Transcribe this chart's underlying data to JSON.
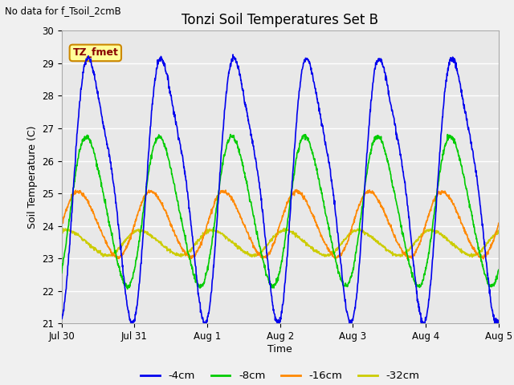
{
  "title": "Tonzi Soil Temperatures Set B",
  "subtitle": "No data for f_Tsoil_2cmB",
  "ylabel": "Soil Temperature (C)",
  "xlabel": "Time",
  "ylim": [
    21.0,
    30.0
  ],
  "yticks": [
    21.0,
    22.0,
    23.0,
    24.0,
    25.0,
    26.0,
    27.0,
    28.0,
    29.0,
    30.0
  ],
  "xtick_labels": [
    "Jul 30",
    "Jul 31",
    "Aug 1",
    "Aug 2",
    "Aug 3",
    "Aug 4",
    "Aug 5"
  ],
  "colors": {
    "4cm": "#0000ee",
    "8cm": "#00cc00",
    "16cm": "#ff8800",
    "32cm": "#cccc00"
  },
  "legend_labels": [
    "-4cm",
    "-8cm",
    "-16cm",
    "-32cm"
  ],
  "annotation_text": "TZ_fmet",
  "plot_bg": "#e8e8e8",
  "fig_bg": "#f0f0f0",
  "grid_color": "#ffffff"
}
